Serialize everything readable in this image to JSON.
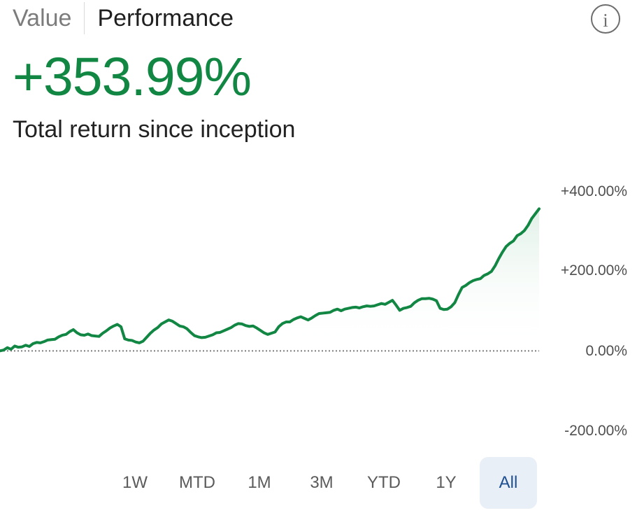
{
  "header": {
    "tabs": [
      {
        "label": "Value",
        "active": false
      },
      {
        "label": "Performance",
        "active": true
      }
    ],
    "info_icon": "info-icon",
    "info_label": "i"
  },
  "summary": {
    "return_value": "+353.99%",
    "return_label": "Total return since inception"
  },
  "chart_data": {
    "type": "line",
    "y_ticks": [
      "+400.00%",
      "+200.00%",
      "0.00%",
      "-200.00%"
    ],
    "ylim": [
      -200,
      400
    ],
    "baseline": 0,
    "line_color": "#118743",
    "fill_color": "#dcefe4",
    "baseline_color": "#7c7c7c",
    "series": [
      {
        "values": [
          0,
          2,
          8,
          4,
          12,
          9,
          10,
          14,
          11,
          18,
          21,
          20,
          23,
          27,
          28,
          29,
          35,
          39,
          41,
          48,
          53,
          45,
          40,
          39,
          42,
          38,
          37,
          36,
          44,
          50,
          57,
          62,
          66,
          60,
          30,
          27,
          26,
          22,
          20,
          24,
          34,
          44,
          52,
          58,
          67,
          72,
          77,
          74,
          68,
          62,
          60,
          55,
          46,
          38,
          35,
          33,
          34,
          37,
          40,
          45,
          46,
          50,
          54,
          58,
          64,
          68,
          67,
          63,
          61,
          62,
          57,
          51,
          45,
          41,
          44,
          47,
          60,
          68,
          72,
          72,
          78,
          82,
          85,
          81,
          77,
          82,
          88,
          93,
          94,
          95,
          96,
          101,
          104,
          100,
          104,
          106,
          108,
          109,
          107,
          110,
          112,
          111,
          112,
          115,
          118,
          116,
          121,
          126,
          114,
          101,
          106,
          108,
          111,
          120,
          126,
          130,
          130,
          131,
          129,
          125,
          106,
          103,
          104,
          110,
          120,
          140,
          158,
          163,
          170,
          175,
          178,
          180,
          188,
          192,
          198,
          212,
          230,
          246,
          260,
          268,
          274,
          287,
          292,
          300,
          313,
          330,
          342,
          354
        ]
      }
    ],
    "x_range": [
      "inception",
      "all"
    ]
  },
  "range": {
    "buttons": [
      {
        "label": "1W",
        "active": false
      },
      {
        "label": "MTD",
        "active": false
      },
      {
        "label": "1M",
        "active": false
      },
      {
        "label": "3M",
        "active": false
      },
      {
        "label": "YTD",
        "active": false
      },
      {
        "label": "1Y",
        "active": false
      },
      {
        "label": "All",
        "active": true
      }
    ]
  }
}
